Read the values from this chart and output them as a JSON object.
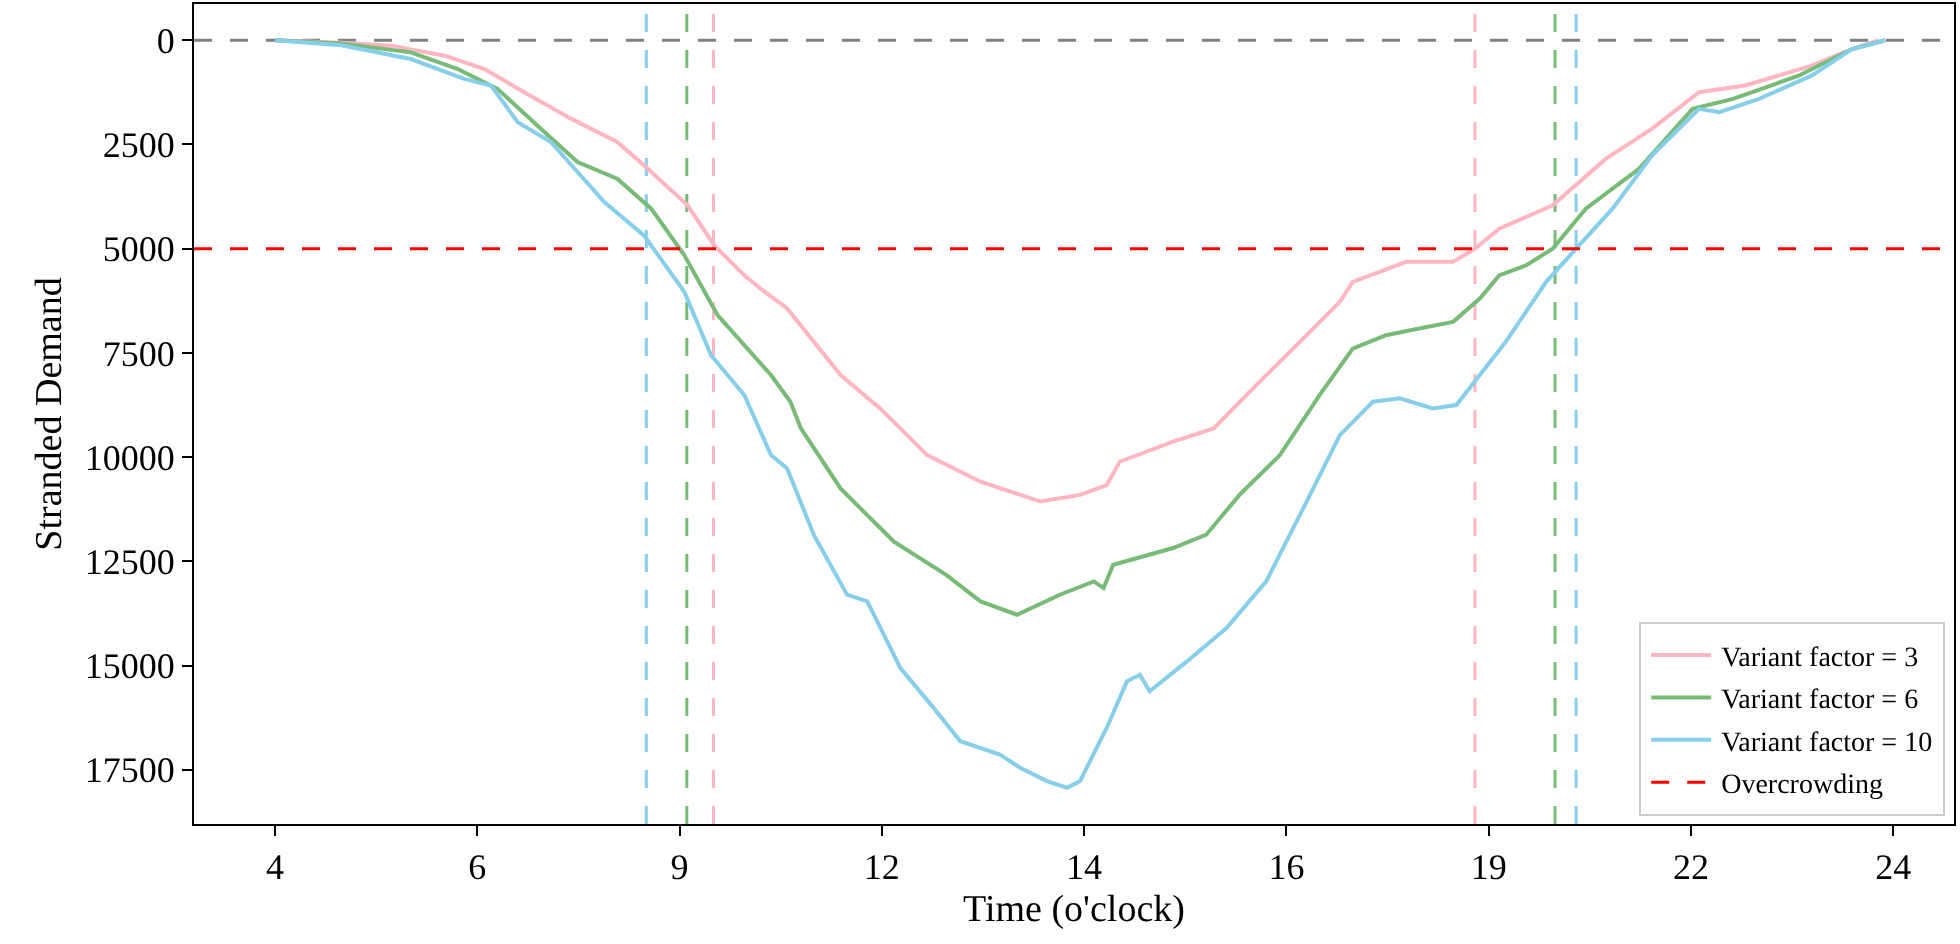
{
  "chart_data": {
    "type": "line",
    "xlabel": "Time (o'clock)",
    "ylabel": "Stranded Demand",
    "xlim": [
      3.0,
      24.75
    ],
    "xticks": [
      4,
      {
        "value": 6.5,
        "label": "6"
      },
      9,
      {
        "value": 11.5,
        "label": "12"
      },
      14,
      {
        "value": 16.5,
        "label": "16"
      },
      19,
      {
        "value": 21.5,
        "label": "22"
      },
      24
    ],
    "ylim": [
      18800,
      -870
    ],
    "yticks": [
      0,
      2500,
      5000,
      7500,
      10000,
      12500,
      15000,
      17500
    ],
    "grid": false,
    "legend": "bottom right",
    "line_style": "solid",
    "marker": "none",
    "series": [
      {
        "name": "Variant factor = 3",
        "color": "#ffb6c1",
        "x": [
          4,
          4.82,
          5.44,
          6.1,
          6.59,
          7.08,
          7.66,
          8.23,
          8.56,
          9.1,
          9.43,
          9.8,
          10.0,
          10.33,
          10.99,
          11.48,
          12.06,
          12.72,
          13.46,
          13.95,
          14.28,
          14.44,
          15.1,
          15.6,
          16.17,
          16.75,
          17.16,
          17.32,
          17.65,
          17.98,
          18.56,
          18.83,
          19.13,
          19.79,
          20.45,
          21.02,
          21.6,
          22.17,
          22.99,
          23.49,
          23.82
        ],
        "values": [
          0,
          60,
          130,
          370,
          690,
          1245,
          1880,
          2440,
          3000,
          3960,
          4920,
          5640,
          5955,
          6435,
          8030,
          8830,
          9950,
          10590,
          11065,
          10905,
          10670,
          10110,
          9630,
          9310,
          8190,
          7075,
          6275,
          5795,
          5555,
          5315,
          5315,
          5000,
          4520,
          3960,
          2840,
          2120,
          1245,
          1085,
          610,
          210,
          0
        ]
      },
      {
        "name": "Variant factor = 6",
        "color": "#77bb77",
        "x": [
          4,
          4.82,
          5.68,
          6.26,
          6.75,
          7.33,
          7.74,
          8.23,
          8.65,
          9.06,
          9.47,
          10.13,
          10.37,
          10.5,
          10.99,
          11.65,
          12.3,
          12.72,
          13.17,
          13.7,
          14.12,
          14.24,
          14.36,
          15.1,
          15.51,
          15.92,
          16.42,
          16.91,
          17.32,
          17.73,
          18.14,
          18.56,
          18.89,
          19.13,
          19.46,
          19.79,
          20.2,
          20.86,
          21.52,
          22.02,
          22.83,
          23.49,
          23.9
        ],
        "values": [
          0,
          80,
          290,
          690,
          1165,
          2200,
          2920,
          3320,
          4040,
          5160,
          6595,
          8030,
          8670,
          9310,
          10750,
          12030,
          12830,
          13460,
          13780,
          13300,
          12980,
          13140,
          12580,
          12180,
          11860,
          10905,
          9950,
          8510,
          7395,
          7075,
          6915,
          6755,
          6195,
          5640,
          5400,
          5000,
          4040,
          3080,
          1645,
          1405,
          850,
          210,
          0
        ]
      },
      {
        "name": "Variant factor = 10",
        "color": "#87ceeb",
        "x": [
          4,
          4.82,
          5.68,
          6.34,
          6.67,
          7.0,
          7.41,
          7.74,
          8.07,
          8.56,
          9.06,
          9.39,
          9.8,
          10.13,
          10.33,
          10.66,
          11.07,
          11.32,
          11.73,
          12.14,
          12.47,
          12.96,
          13.21,
          13.54,
          13.79,
          13.95,
          14.28,
          14.53,
          14.69,
          14.81,
          15.27,
          15.76,
          16.25,
          16.75,
          17.16,
          17.57,
          17.9,
          18.31,
          18.6,
          18.89,
          19.21,
          19.71,
          20.08,
          20.53,
          21.02,
          21.6,
          21.85,
          22.34,
          22.99,
          23.49,
          23.9
        ],
        "values": [
          0,
          120,
          450,
          925,
          1085,
          1965,
          2440,
          3160,
          3880,
          4680,
          6035,
          7555,
          8510,
          9950,
          10270,
          11865,
          13300,
          13460,
          15060,
          16015,
          16815,
          17135,
          17450,
          17770,
          17930,
          17770,
          16490,
          15375,
          15220,
          15615,
          14900,
          14100,
          12980,
          11065,
          9470,
          8670,
          8590,
          8830,
          8750,
          8030,
          7235,
          5795,
          5000,
          4040,
          2760,
          1645,
          1725,
          1405,
          850,
          210,
          0
        ]
      }
    ],
    "ref_lines": [
      {
        "axis": "y",
        "value": 0,
        "color": "#808080",
        "line_style": "dashed"
      },
      {
        "axis": "y",
        "value": 5000,
        "label": "Overcrowding",
        "color": "#ff0000",
        "line_style": "dashed"
      },
      {
        "axis": "x",
        "value": 8.59,
        "color": "#87ceeb",
        "line_style": "dashed"
      },
      {
        "axis": "x",
        "value": 9.09,
        "color": "#77bb77",
        "line_style": "dashed"
      },
      {
        "axis": "x",
        "value": 9.42,
        "color": "#ffb6c1",
        "line_style": "dashed"
      },
      {
        "axis": "x",
        "value": 18.83,
        "color": "#ffb6c1",
        "line_style": "dashed"
      },
      {
        "axis": "x",
        "value": 19.82,
        "color": "#77bb77",
        "line_style": "dashed"
      },
      {
        "axis": "x",
        "value": 20.08,
        "color": "#87ceeb",
        "line_style": "dashed"
      }
    ]
  }
}
